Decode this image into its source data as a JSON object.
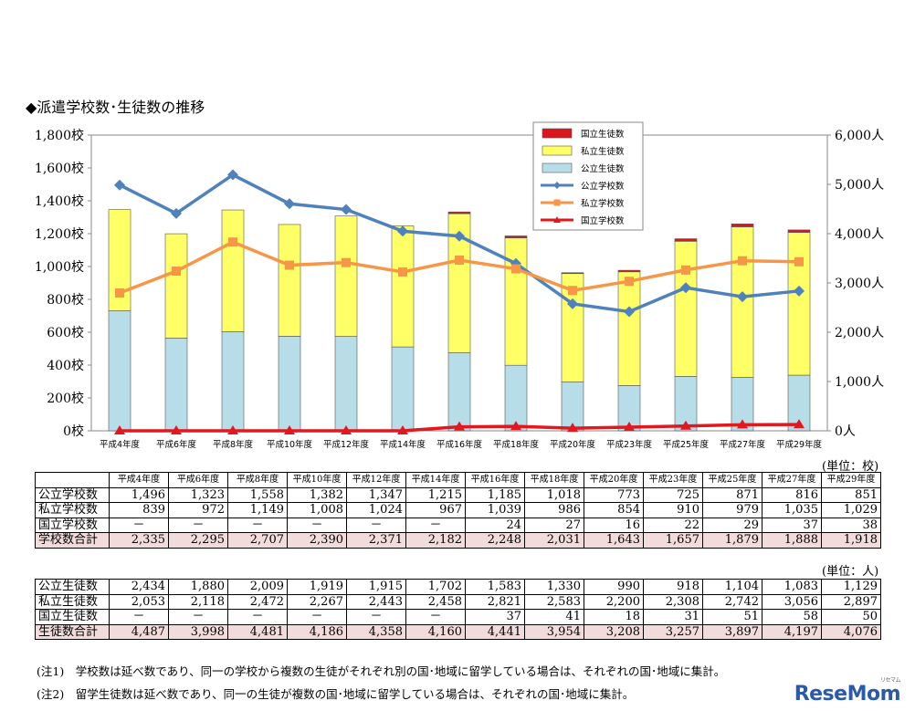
{
  "title": "◆派遣学校数･生徒数の推移",
  "chart_data": {
    "type": "bar",
    "categories": [
      "平成4年度",
      "平成6年度",
      "平成8年度",
      "平成10年度",
      "平成12年度",
      "平成14年度",
      "平成16年度",
      "平成18年度",
      "平成20年度",
      "平成23年度",
      "平成25年度",
      "平成27年度",
      "平成29年度"
    ],
    "left_axis": {
      "ticks": [
        "0校",
        "200校",
        "400校",
        "600校",
        "800校",
        "1,000校",
        "1,200校",
        "1,400校",
        "1,600校",
        "1,800校"
      ],
      "ylim": [
        0,
        1800
      ]
    },
    "right_axis": {
      "ticks": [
        "0人",
        "1,000人",
        "2,000人",
        "3,000人",
        "4,000人",
        "5,000人",
        "6,000人"
      ],
      "ylim": [
        0,
        6000
      ]
    },
    "stacked_bars": [
      {
        "name": "公立生徒数",
        "color": "#b7dde8",
        "values": [
          2434,
          1880,
          2009,
          1919,
          1915,
          1702,
          1583,
          1330,
          990,
          918,
          1104,
          1083,
          1129
        ]
      },
      {
        "name": "私立生徒数",
        "color": "#ffff66",
        "values": [
          2053,
          2118,
          2472,
          2267,
          2443,
          2458,
          2821,
          2583,
          2200,
          2308,
          2742,
          3056,
          2897
        ]
      },
      {
        "name": "国立生徒数",
        "color": "#d9161c",
        "values": [
          0,
          0,
          0,
          0,
          0,
          0,
          37,
          41,
          18,
          31,
          51,
          58,
          50
        ]
      }
    ],
    "lines": [
      {
        "name": "公立学校数",
        "color": "#4f81bd",
        "values": [
          1496,
          1323,
          1558,
          1382,
          1347,
          1215,
          1185,
          1018,
          773,
          725,
          871,
          816,
          851
        ]
      },
      {
        "name": "私立学校数",
        "color": "#f79646",
        "values": [
          839,
          972,
          1149,
          1008,
          1024,
          967,
          1039,
          986,
          854,
          910,
          979,
          1035,
          1029
        ]
      },
      {
        "name": "国立学校数",
        "color": "#e2181e",
        "values": [
          0,
          0,
          0,
          0,
          0,
          0,
          24,
          27,
          16,
          22,
          29,
          37,
          38
        ]
      }
    ],
    "legend": [
      "国立生徒数",
      "私立生徒数",
      "公立生徒数",
      "公立学校数",
      "私立学校数",
      "国立学校数"
    ]
  },
  "school_table": {
    "unit": "(単位：校)",
    "headers": [
      "平成4年度",
      "平成6年度",
      "平成8年度",
      "平成10年度",
      "平成12年度",
      "平成14年度",
      "平成16年度",
      "平成18年度",
      "平成20年度",
      "平成23年度",
      "平成25年度",
      "平成27年度",
      "平成29年度"
    ],
    "rows": [
      {
        "label": "公立学校数",
        "cells": [
          "1,496",
          "1,323",
          "1,558",
          "1,382",
          "1,347",
          "1,215",
          "1,185",
          "1,018",
          "773",
          "725",
          "871",
          "816",
          "851"
        ]
      },
      {
        "label": "私立学校数",
        "cells": [
          "839",
          "972",
          "1,149",
          "1,008",
          "1,024",
          "967",
          "1,039",
          "986",
          "854",
          "910",
          "979",
          "1,035",
          "1,029"
        ]
      },
      {
        "label": "国立学校数",
        "cells": [
          "－",
          "－",
          "－",
          "－",
          "－",
          "－",
          "24",
          "27",
          "16",
          "22",
          "29",
          "37",
          "38"
        ]
      },
      {
        "label": "学校数合計",
        "cells": [
          "2,335",
          "2,295",
          "2,707",
          "2,390",
          "2,371",
          "2,182",
          "2,248",
          "2,031",
          "1,643",
          "1,657",
          "1,879",
          "1,888",
          "1,918"
        ],
        "total": true
      }
    ]
  },
  "student_table": {
    "unit": "(単位：人)",
    "rows": [
      {
        "label": "公立生徒数",
        "cells": [
          "2,434",
          "1,880",
          "2,009",
          "1,919",
          "1,915",
          "1,702",
          "1,583",
          "1,330",
          "990",
          "918",
          "1,104",
          "1,083",
          "1,129"
        ]
      },
      {
        "label": "私立生徒数",
        "cells": [
          "2,053",
          "2,118",
          "2,472",
          "2,267",
          "2,443",
          "2,458",
          "2,821",
          "2,583",
          "2,200",
          "2,308",
          "2,742",
          "3,056",
          "2,897"
        ]
      },
      {
        "label": "国立生徒数",
        "cells": [
          "－",
          "－",
          "－",
          "－",
          "－",
          "－",
          "37",
          "41",
          "18",
          "31",
          "51",
          "58",
          "50"
        ]
      },
      {
        "label": "生徒数合計",
        "cells": [
          "4,487",
          "3,998",
          "4,481",
          "4,186",
          "4,358",
          "4,160",
          "4,441",
          "3,954",
          "3,208",
          "3,257",
          "3,897",
          "4,197",
          "4,076"
        ],
        "total": true
      }
    ]
  },
  "notes": [
    "(注1)　学校数は延べ数であり、同一の学校から複数の生徒がそれぞれ別の国･地域に留学している場合は、それぞれの国･地域に集計。",
    "(注2)　留学生徒数は延べ数であり、同一の生徒が複数の国･地域に留学している場合は、それぞれの国･地域に集計。"
  ],
  "logo": {
    "text": "ReseMom",
    "small": "リセマム"
  }
}
